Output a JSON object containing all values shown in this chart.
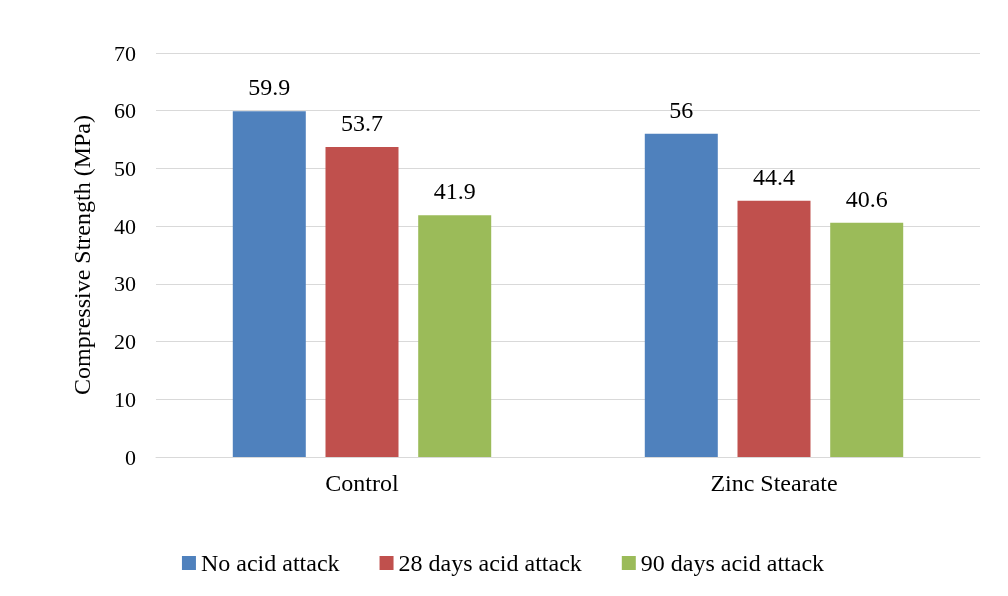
{
  "chart_data": {
    "type": "bar",
    "ylabel": "Compressive Strength (MPa)",
    "categories": [
      "Control",
      "Zinc Stearate"
    ],
    "series": [
      {
        "name": "No acid attack",
        "color": "#4f81bd",
        "values": [
          59.9,
          56
        ]
      },
      {
        "name": "28 days acid attack",
        "color": "#c0504d",
        "values": [
          53.7,
          44.4
        ]
      },
      {
        "name": "90 days acid attack",
        "color": "#9bbb59",
        "values": [
          41.9,
          40.6
        ]
      }
    ],
    "ylim": [
      0,
      70
    ],
    "yticks": [
      0,
      10,
      20,
      30,
      40,
      50,
      60,
      70
    ],
    "grid": "y",
    "legend": "bottom",
    "data_labels": true
  }
}
